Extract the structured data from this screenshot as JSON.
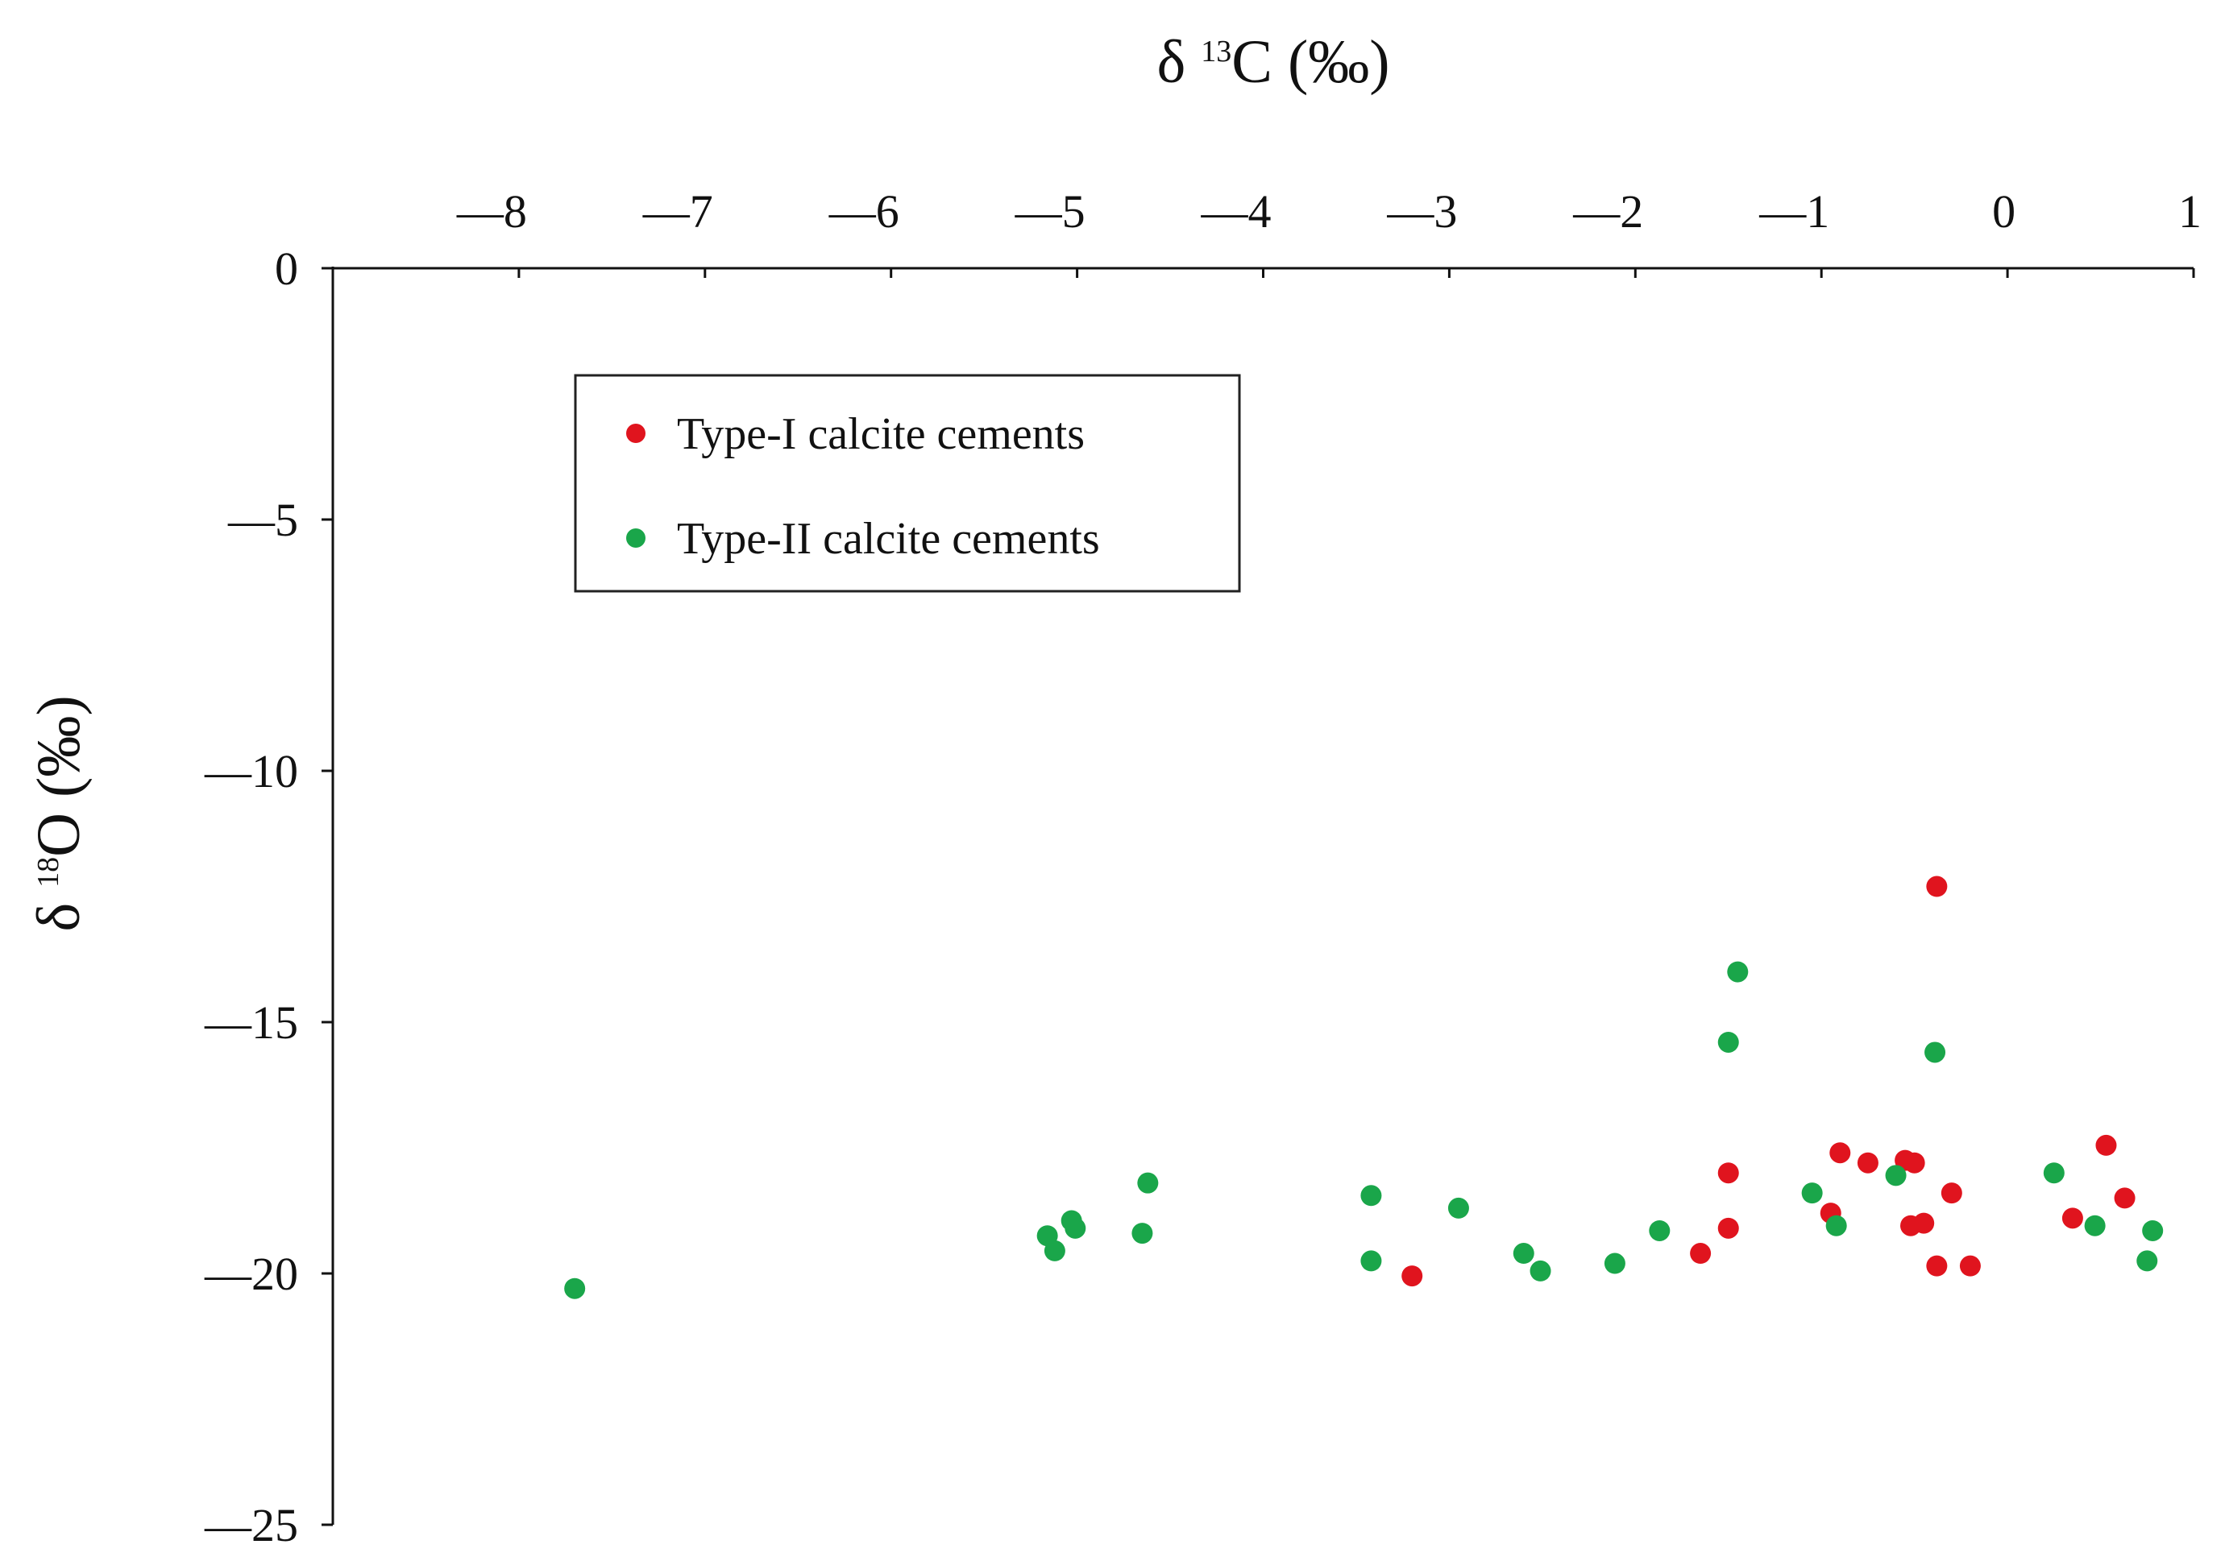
{
  "chart_data": {
    "type": "scatter",
    "x_axis": {
      "label_prefix": "δ ",
      "label_sup": "13",
      "label_main": "C (‰)",
      "position": "top",
      "range": [
        -9,
        1
      ],
      "ticks": [
        -8,
        -7,
        -6,
        -5,
        -4,
        -3,
        -2,
        -1,
        0,
        1
      ],
      "tick_labels": [
        "—8",
        "—7",
        "—6",
        "—5",
        "—4",
        "—3",
        "—2",
        "—1",
        "0",
        "1"
      ]
    },
    "y_axis": {
      "label_prefix": "δ ",
      "label_sup": "18",
      "label_main": "O (‰)",
      "position": "left",
      "range": [
        -25,
        0
      ],
      "ticks": [
        0,
        -5,
        -10,
        -15,
        -20,
        -25
      ],
      "tick_labels": [
        "0",
        "—5",
        "—10",
        "—15",
        "—20",
        "—25"
      ]
    },
    "grid": false,
    "legend": {
      "placement": "top-left",
      "entries": [
        {
          "label": "Type-I  calcite cements",
          "color": "#e0141e"
        },
        {
          "label": "Type-II  calcite cements",
          "color": "#1aa64a"
        }
      ]
    },
    "series": [
      {
        "name": "Type-I  calcite cements",
        "color": "#e0141e",
        "points": [
          [
            -3.2,
            -20.05
          ],
          [
            -1.65,
            -19.6
          ],
          [
            -1.5,
            -18.0
          ],
          [
            -1.5,
            -19.1
          ],
          [
            -0.95,
            -18.8
          ],
          [
            -0.9,
            -17.6
          ],
          [
            -0.75,
            -17.8
          ],
          [
            -0.55,
            -17.75
          ],
          [
            -0.5,
            -17.8
          ],
          [
            -0.52,
            -19.05
          ],
          [
            -0.45,
            -19.0
          ],
          [
            -0.38,
            -12.3
          ],
          [
            -0.38,
            -19.85
          ],
          [
            -0.3,
            -18.4
          ],
          [
            -0.2,
            -19.85
          ],
          [
            0.35,
            -18.9
          ],
          [
            0.53,
            -17.45
          ],
          [
            0.63,
            -18.5
          ]
        ]
      },
      {
        "name": "Type-II  calcite cements",
        "color": "#1aa64a",
        "points": [
          [
            -7.7,
            -20.3
          ],
          [
            -5.16,
            -19.25
          ],
          [
            -5.12,
            -19.55
          ],
          [
            -5.03,
            -18.95
          ],
          [
            -5.01,
            -19.1
          ],
          [
            -4.65,
            -19.2
          ],
          [
            -4.62,
            -18.2
          ],
          [
            -3.42,
            -18.45
          ],
          [
            -3.42,
            -19.75
          ],
          [
            -2.95,
            -18.7
          ],
          [
            -2.6,
            -19.6
          ],
          [
            -2.51,
            -19.95
          ],
          [
            -2.11,
            -19.8
          ],
          [
            -1.87,
            -19.15
          ],
          [
            -1.5,
            -15.4
          ],
          [
            -1.45,
            -14.0
          ],
          [
            -1.05,
            -18.4
          ],
          [
            -0.92,
            -19.05
          ],
          [
            -0.6,
            -18.05
          ],
          [
            -0.39,
            -15.6
          ],
          [
            0.25,
            -18.0
          ],
          [
            0.47,
            -19.05
          ],
          [
            0.75,
            -19.75
          ],
          [
            0.78,
            -19.15
          ]
        ]
      }
    ]
  }
}
